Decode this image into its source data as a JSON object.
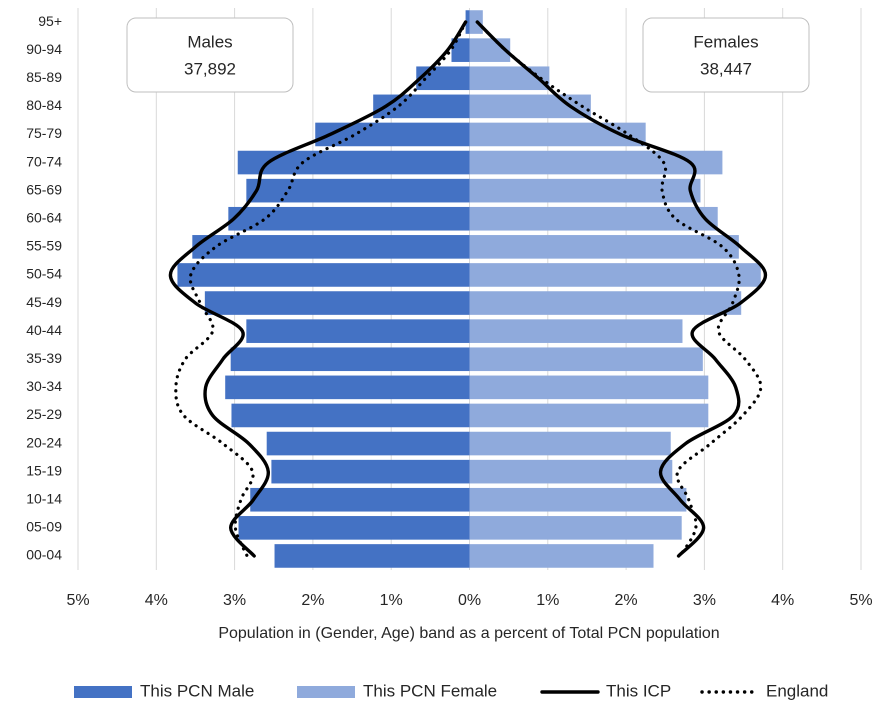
{
  "chart_data": {
    "type": "pyramid",
    "categories": [
      "95+",
      "90-94",
      "85-89",
      "80-84",
      "75-79",
      "70-74",
      "65-69",
      "60-64",
      "55-59",
      "50-54",
      "45-49",
      "40-44",
      "35-39",
      "30-34",
      "25-29",
      "20-24",
      "15-19",
      "10-14",
      "05-09",
      "00-04"
    ],
    "series": [
      {
        "name": "This PCN Male",
        "color": "#4472c4",
        "kind": "bar",
        "values": [
          -0.05,
          -0.23,
          -0.68,
          -1.23,
          -1.97,
          -2.96,
          -2.85,
          -3.08,
          -3.54,
          -3.73,
          -3.38,
          -2.85,
          -3.05,
          -3.12,
          -3.04,
          -2.59,
          -2.53,
          -2.8,
          -2.95,
          -2.49
        ]
      },
      {
        "name": "This PCN Female",
        "color": "#8faadc",
        "kind": "bar",
        "values": [
          0.17,
          0.52,
          1.02,
          1.55,
          2.25,
          3.23,
          2.95,
          3.17,
          3.44,
          3.72,
          3.47,
          2.72,
          2.98,
          3.05,
          3.05,
          2.57,
          2.59,
          2.77,
          2.71,
          2.35
        ]
      },
      {
        "name": "This ICP",
        "color": "#000000",
        "kind": "line",
        "dash": "solid",
        "male_values": [
          -0.05,
          -0.28,
          -0.63,
          -1.07,
          -1.78,
          -2.57,
          -2.72,
          -3.01,
          -3.5,
          -3.82,
          -3.5,
          -2.9,
          -3.15,
          -3.37,
          -3.28,
          -2.82,
          -2.57,
          -2.76,
          -3.05,
          -2.75
        ],
        "female_values": [
          0.1,
          0.46,
          0.88,
          1.29,
          1.93,
          2.82,
          2.82,
          3.01,
          3.46,
          3.78,
          3.46,
          2.85,
          3.14,
          3.4,
          3.37,
          2.76,
          2.44,
          2.69,
          2.99,
          2.67
        ]
      },
      {
        "name": "England",
        "color": "#000000",
        "kind": "line",
        "dash": "dotted",
        "male_values": [
          -0.05,
          -0.24,
          -0.56,
          -0.91,
          -1.46,
          -2.13,
          -2.32,
          -2.61,
          -3.24,
          -3.56,
          -3.44,
          -3.28,
          -3.63,
          -3.75,
          -3.65,
          -3.15,
          -2.77,
          -2.92,
          -2.99,
          -2.84
        ],
        "female_values": [
          0.1,
          0.46,
          0.91,
          1.44,
          2.03,
          2.48,
          2.46,
          2.63,
          3.23,
          3.44,
          3.36,
          3.18,
          3.52,
          3.72,
          3.49,
          3.08,
          2.66,
          2.8,
          2.89,
          2.69
        ]
      }
    ],
    "xlabel": "Population in (Gender, Age) band as a percent of Total PCN population",
    "xlim": [
      -5,
      5
    ],
    "xticks": [
      {
        "value": -5,
        "label": "5%"
      },
      {
        "value": -4,
        "label": "4%"
      },
      {
        "value": -3,
        "label": "3%"
      },
      {
        "value": -2,
        "label": "2%"
      },
      {
        "value": -1,
        "label": "1%"
      },
      {
        "value": 0,
        "label": "0%"
      },
      {
        "value": 1,
        "label": "1%"
      },
      {
        "value": 2,
        "label": "2%"
      },
      {
        "value": 3,
        "label": "3%"
      },
      {
        "value": 4,
        "label": "4%"
      },
      {
        "value": 5,
        "label": "5%"
      }
    ],
    "grid": true,
    "legend": "bottom",
    "annotations": [
      {
        "title": "Males",
        "value": "37,892"
      },
      {
        "title": "Females",
        "value": "38,447"
      }
    ]
  }
}
